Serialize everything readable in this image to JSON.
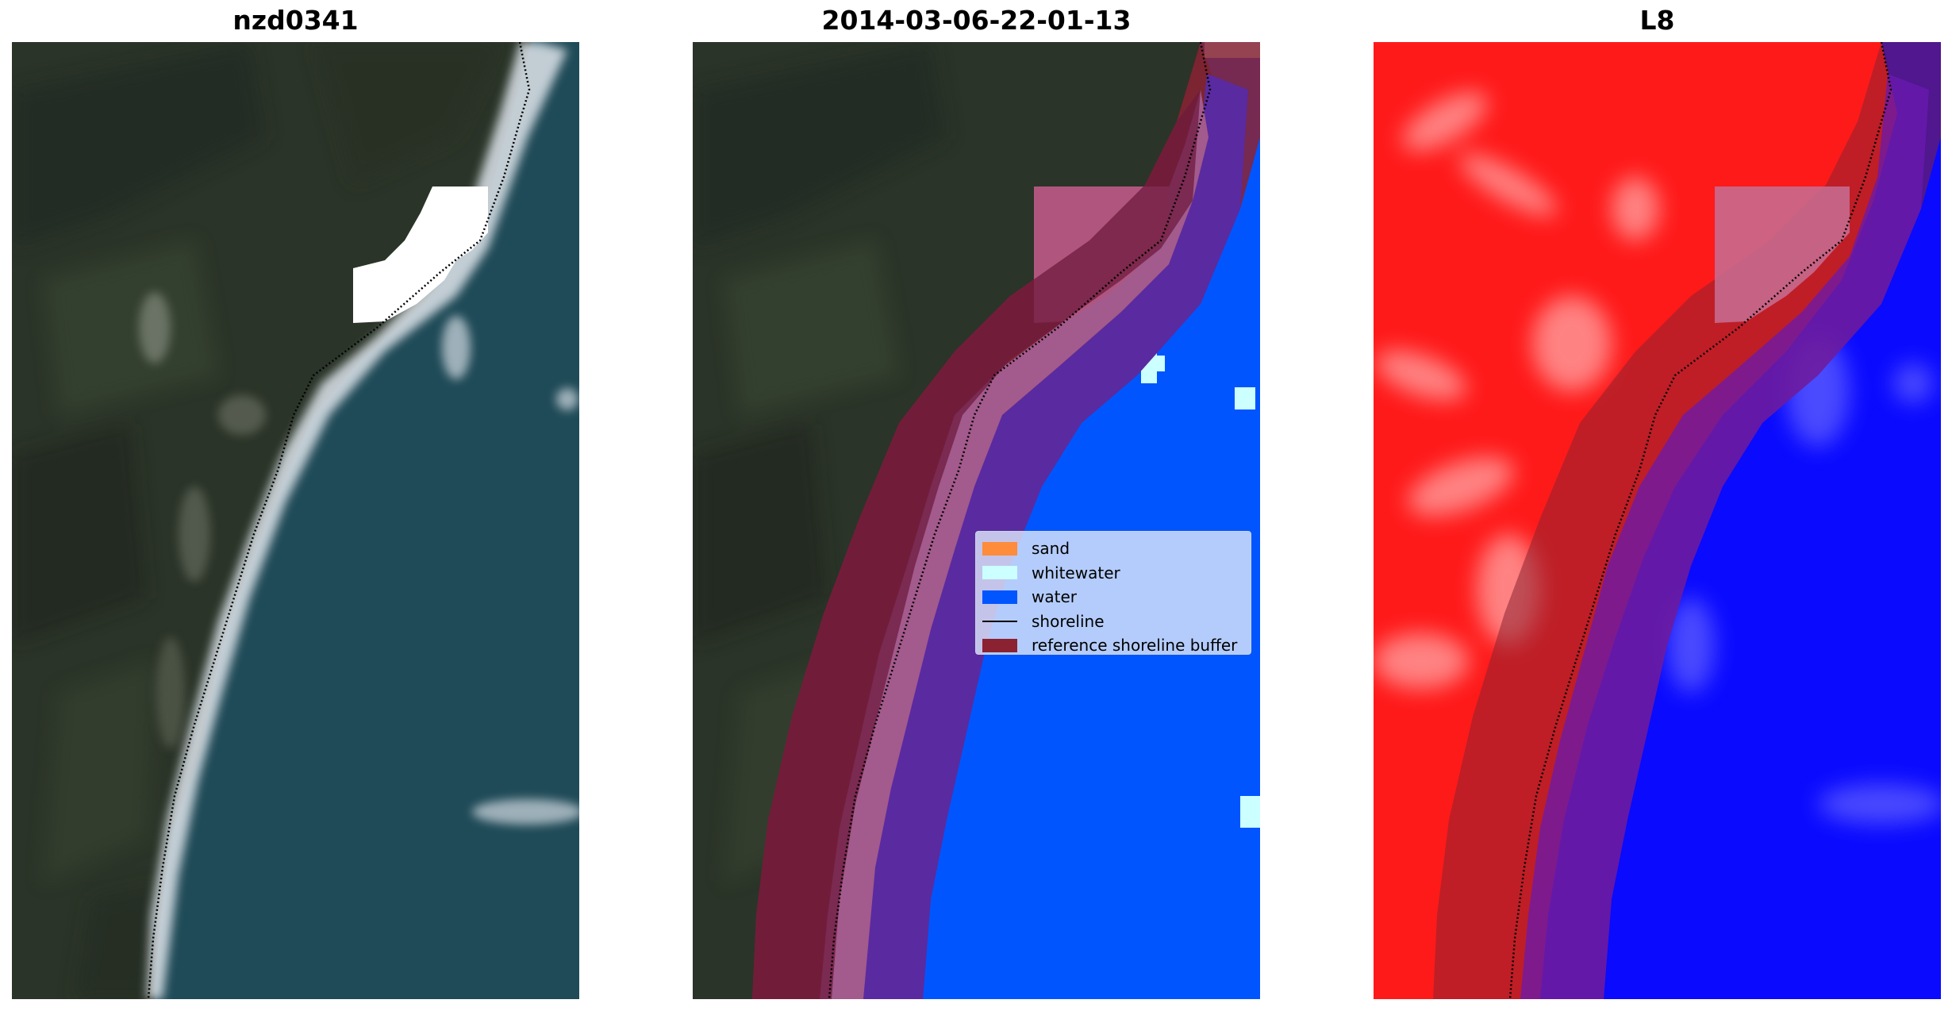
{
  "panels": [
    {
      "title": "nzd0341"
    },
    {
      "title": "2014-03-06-22-01-13"
    },
    {
      "title": "L8"
    }
  ],
  "legend": {
    "items": [
      {
        "label": "sand",
        "color": "#ff8c3a",
        "kind": "patch"
      },
      {
        "label": "whitewater",
        "color": "#ccffff",
        "kind": "patch"
      },
      {
        "label": "water",
        "color": "#0055ff",
        "kind": "patch"
      },
      {
        "label": "shoreline",
        "color": "#000000",
        "kind": "line"
      },
      {
        "label": "reference shoreline buffer",
        "color": "#8b2232",
        "kind": "patch"
      }
    ]
  },
  "colors": {
    "land": "#2a3326",
    "sea": "#1f4a57",
    "surf": "#d8dfe4",
    "cloud_mask": "#ffffff",
    "classified_water": "#0055ff",
    "classified_whitewater": "#ccffff",
    "buffer": "#8b2232",
    "buffer_water": "#5a2aa0",
    "buffer_land": "#a35a8c",
    "index_land": "#ff1a1a",
    "index_water": "#0a0aff"
  }
}
